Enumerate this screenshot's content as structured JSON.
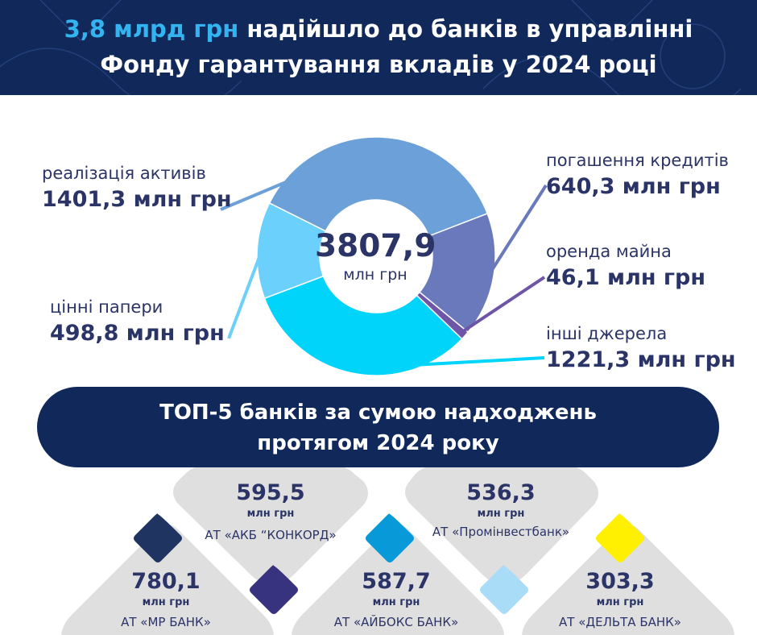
{
  "header": {
    "title_highlight": "3,8 млрд грн",
    "title_rest_line1": " надійшло до банків в управлінні",
    "title_line2": "Фонду гарантування вкладів у 2024 році"
  },
  "colors": {
    "navy": "#10285a",
    "text": "#2b3467",
    "highlight": "#33b4f0"
  },
  "chart_data": {
    "type": "pie",
    "center_total": "3807,9",
    "center_unit": "млн грн",
    "slices": [
      {
        "name": "погашення кредитів",
        "value": 640.3,
        "value_label": "640,3 млн грн",
        "color": "#6a79bb"
      },
      {
        "name": "оренда майна",
        "value": 46.1,
        "value_label": "46,1 млн грн",
        "color": "#6e55a8"
      },
      {
        "name": "інші джерела",
        "value": 1221.3,
        "value_label": "1221,3 млн грн",
        "color": "#00d4fb"
      },
      {
        "name": "цінні папери",
        "value": 498.8,
        "value_label": "498,8 млн грн",
        "color": "#6bd0fb"
      },
      {
        "name": "реалізація активів",
        "value": 1401.3,
        "value_label": "1401,3 млн грн",
        "color": "#6ba0d8"
      }
    ]
  },
  "top_banner": {
    "line1": "ТОП-5 банків за сумою надходжень",
    "line2": "протягом 2024 року"
  },
  "banks": [
    {
      "value": "595,5",
      "unit": "млн грн",
      "name": "АТ «АКБ “КОНКОРД»",
      "marker_color": "#1f3460"
    },
    {
      "value": "536,3",
      "unit": "млн грн",
      "name": "АТ «Промінвестбанк»",
      "marker_color": "#0899d9"
    },
    {
      "value": "780,1",
      "unit": "млн грн",
      "name": "АТ «МР БАНК»",
      "marker_color": "#38337e"
    },
    {
      "value": "587,7",
      "unit": "млн грн",
      "name": "АТ «АЙБОКС БАНК»",
      "marker_color": "#a8dcf7"
    },
    {
      "value": "303,3",
      "unit": "млн грн",
      "name": "АТ «ДЕЛЬТА БАНК»",
      "marker_color": "#fff000"
    }
  ]
}
